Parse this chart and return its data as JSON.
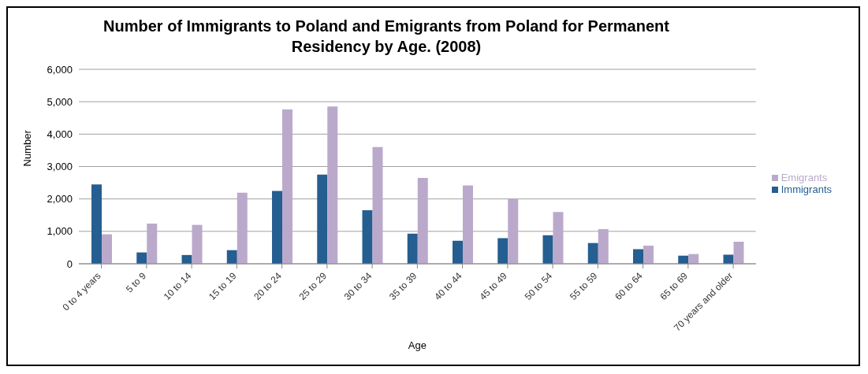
{
  "chart_data": {
    "type": "bar",
    "title": "Number of Immigrants to Poland and Emigrants from Poland for Permanent Residency by Age. (2008)",
    "xlabel": "Age",
    "ylabel": "Number",
    "categories": [
      "0 to 4 years",
      "5 to 9",
      "10 to 14",
      "15 to 19",
      "20 to 24",
      "25 to 29",
      "30 to 34",
      "35 to 39",
      "40 to 44",
      "45 to 49",
      "50 to 54",
      "55 to 59",
      "60 to 64",
      "65 to 69",
      "70 years and older"
    ],
    "series": [
      {
        "name": "Immigrants",
        "color": "#255e91",
        "values": [
          2450,
          350,
          270,
          420,
          2250,
          2750,
          1650,
          930,
          710,
          790,
          880,
          640,
          450,
          250,
          280
        ]
      },
      {
        "name": "Emigrants",
        "color": "#bba9cc",
        "values": [
          910,
          1240,
          1200,
          2190,
          4760,
          4850,
          3600,
          2650,
          2420,
          2000,
          1600,
          1070,
          560,
          300,
          680
        ]
      }
    ],
    "ylim": [
      0,
      6000
    ],
    "yticks": [
      {
        "value": 0,
        "label": "0"
      },
      {
        "value": 1000,
        "label": "1,000"
      },
      {
        "value": 2000,
        "label": "2,000"
      },
      {
        "value": 3000,
        "label": "3,000"
      },
      {
        "value": 4000,
        "label": "4,000"
      },
      {
        "value": 5000,
        "label": "5,000"
      },
      {
        "value": 6000,
        "label": "6,000"
      }
    ],
    "grid": "y",
    "legend": "right"
  }
}
